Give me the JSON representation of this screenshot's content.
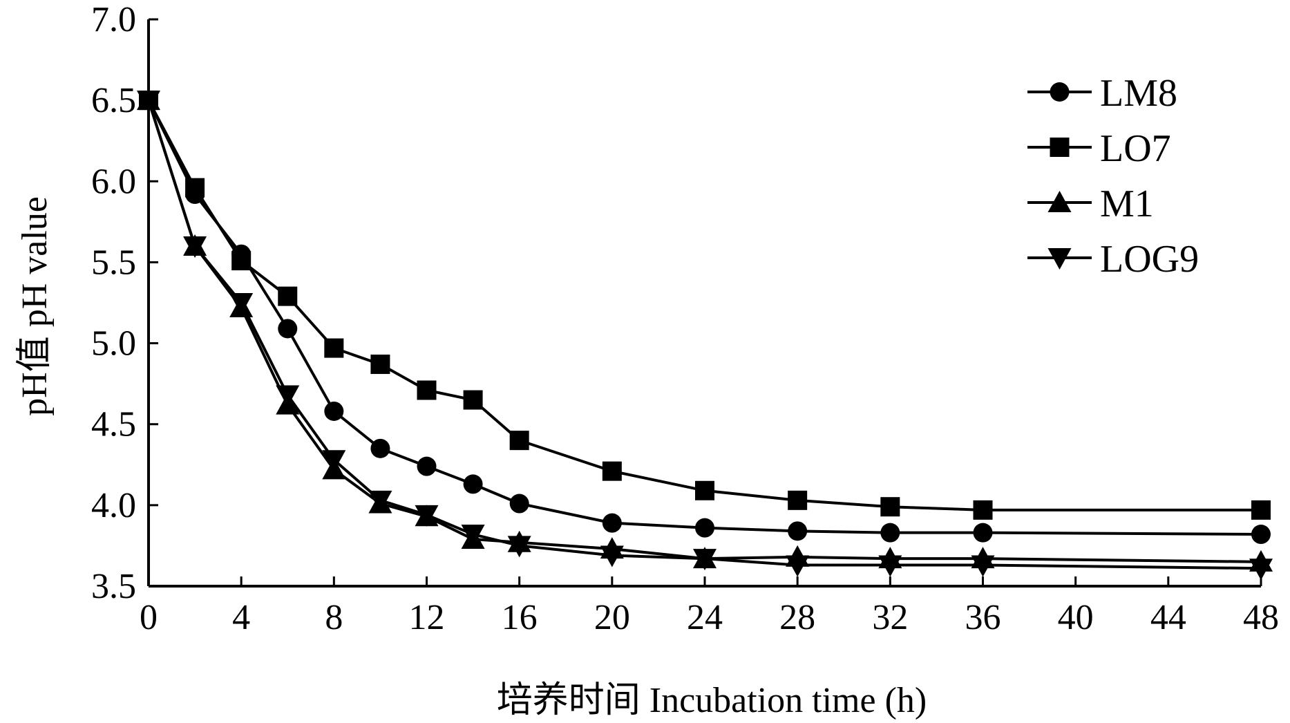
{
  "chart_data": {
    "type": "line",
    "title": "",
    "xlabel": "培养时间 Incubation time (h)",
    "ylabel": "pH值 pH value",
    "xlim": [
      0,
      48
    ],
    "ylim": [
      3.5,
      7.0
    ],
    "xticks": [
      0,
      4,
      8,
      12,
      16,
      20,
      24,
      28,
      32,
      36,
      40,
      44,
      48
    ],
    "yticks": [
      "3.5",
      "4.0",
      "4.5",
      "5.0",
      "5.5",
      "6.0",
      "6.5",
      "7.0"
    ],
    "grid": false,
    "legend_position": "top-right",
    "x": [
      0,
      2,
      4,
      6,
      8,
      10,
      12,
      14,
      16,
      20,
      24,
      28,
      32,
      36,
      48
    ],
    "series": [
      {
        "name": "LM8",
        "marker": "circle",
        "values": [
          6.5,
          5.92,
          5.55,
          5.09,
          4.58,
          4.35,
          4.24,
          4.13,
          4.01,
          3.89,
          3.86,
          3.84,
          3.83,
          3.83,
          3.82
        ]
      },
      {
        "name": "LO7",
        "marker": "square",
        "values": [
          6.5,
          5.96,
          5.51,
          5.29,
          4.97,
          4.87,
          4.71,
          4.65,
          4.4,
          4.21,
          4.09,
          4.03,
          3.99,
          3.97,
          3.97
        ]
      },
      {
        "name": "M1",
        "marker": "triangle-up",
        "values": [
          6.5,
          5.6,
          5.22,
          4.62,
          4.22,
          4.01,
          3.93,
          3.79,
          3.77,
          3.73,
          3.67,
          3.68,
          3.67,
          3.67,
          3.65
        ]
      },
      {
        "name": "LOG9",
        "marker": "triangle-down",
        "values": [
          6.5,
          5.6,
          5.25,
          4.68,
          4.28,
          4.03,
          3.94,
          3.82,
          3.75,
          3.69,
          3.67,
          3.63,
          3.63,
          3.63,
          3.61
        ]
      }
    ]
  }
}
